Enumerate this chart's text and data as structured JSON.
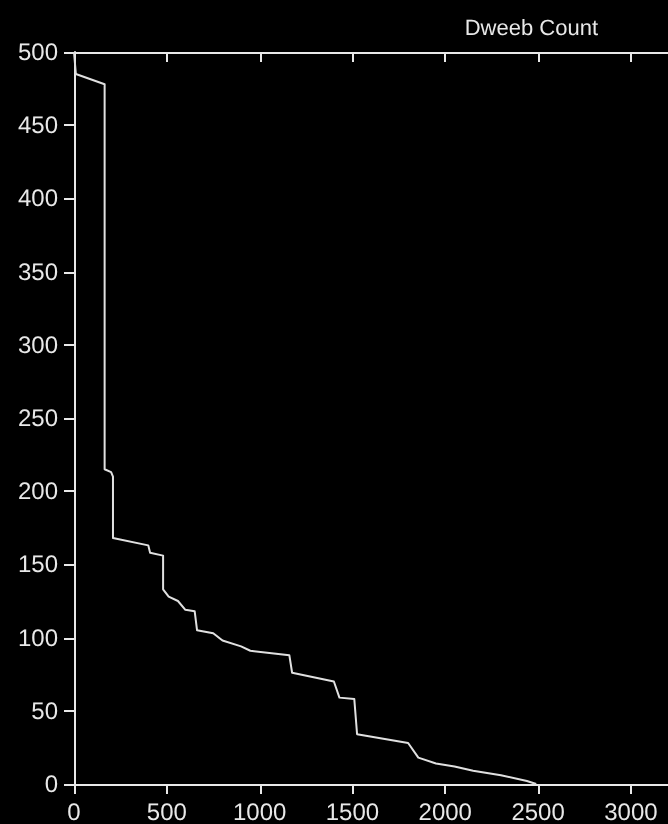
{
  "chart_data": {
    "type": "line",
    "title": "Dweeb Count",
    "x": [
      0,
      10,
      165,
      165,
      200,
      210,
      210,
      400,
      410,
      480,
      480,
      510,
      560,
      600,
      650,
      663,
      750,
      800,
      900,
      950,
      1160,
      1175,
      1400,
      1430,
      1510,
      1525,
      1800,
      1855,
      1950,
      2050,
      2150,
      2300,
      2440,
      2490
    ],
    "series": [
      {
        "color": "#e0e0e0",
        "values": [
          500,
          485,
          478,
          215,
          213,
          210,
          168,
          163,
          158,
          156,
          133,
          128,
          125,
          119,
          118,
          105,
          103,
          98,
          94,
          91,
          88,
          76,
          70,
          59,
          58,
          34,
          28,
          18,
          14,
          12,
          9,
          6,
          2,
          0
        ]
      }
    ],
    "xlim": [
      0,
      3200
    ],
    "xticks": [
      0,
      500,
      1000,
      1500,
      2000,
      2500,
      3000
    ],
    "ylim": [
      0,
      500
    ],
    "yticks": [
      0,
      50,
      100,
      150,
      200,
      250,
      300,
      350,
      400,
      450,
      500
    ],
    "grid": false,
    "marker": "none",
    "line_style": "solid"
  }
}
